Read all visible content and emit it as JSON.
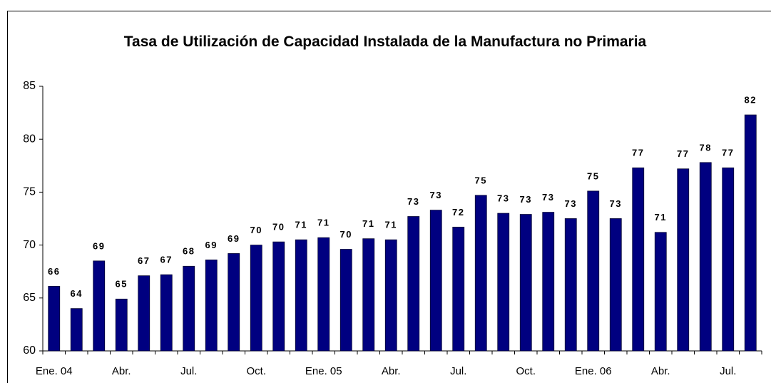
{
  "chart_data": {
    "type": "bar",
    "title": "Tasa de Utilización de Capacidad Instalada de la Manufactura no Primaria",
    "categories": [
      "Ene. 04",
      null,
      null,
      "Abr.",
      null,
      null,
      "Jul.",
      null,
      null,
      "Oct.",
      null,
      null,
      "Ene. 05",
      null,
      null,
      "Abr.",
      null,
      null,
      "Jul.",
      null,
      null,
      "Oct.",
      null,
      null,
      "Ene. 06",
      null,
      null,
      "Abr.",
      null,
      null,
      "Jul.",
      null
    ],
    "values": [
      66.1,
      64.0,
      68.5,
      64.9,
      67.1,
      67.2,
      68.0,
      68.6,
      69.2,
      70.0,
      70.3,
      70.5,
      70.7,
      69.6,
      70.6,
      70.5,
      72.7,
      73.3,
      71.7,
      74.7,
      73.0,
      72.9,
      73.1,
      72.5,
      75.1,
      72.5,
      77.3,
      71.2,
      77.2,
      77.8,
      77.3,
      82.3
    ],
    "value_labels": [
      "66",
      "64",
      "69",
      "65",
      "67",
      "67",
      "68",
      "69",
      "69",
      "70",
      "70",
      "71",
      "71",
      "70",
      "71",
      "71",
      "73",
      "73",
      "72",
      "75",
      "73",
      "73",
      "73",
      "73",
      "75",
      "73",
      "77",
      "71",
      "77",
      "78",
      "77",
      "82"
    ],
    "color": "#000080",
    "ylim": [
      60,
      85
    ],
    "yticks": [
      60,
      65,
      70,
      75,
      80,
      85
    ],
    "grid": false
  }
}
